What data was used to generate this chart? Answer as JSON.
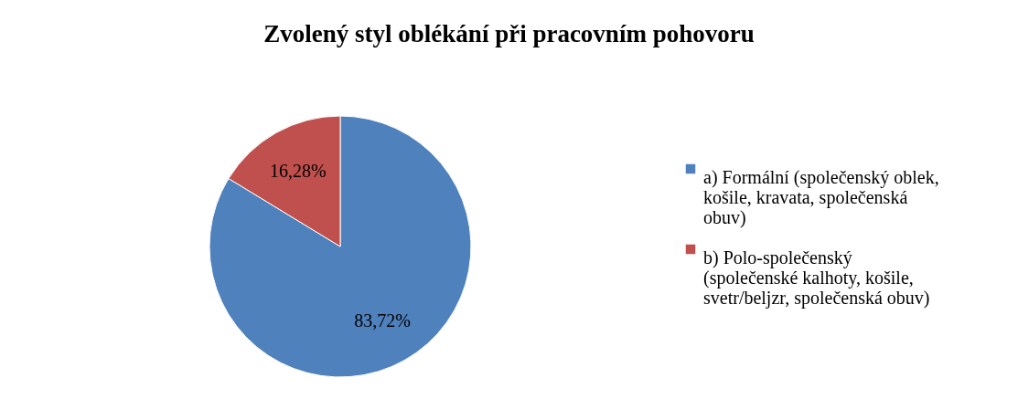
{
  "chart_data": {
    "type": "pie",
    "title": "Zvolený styl oblékání při pracovním pohovoru",
    "categories": [
      "a) Formální (společenský oblek, košile, kravata, společenská obuv)",
      "b) Polo-společenský (společenské kalhoty, košile, svetr/beljzr, společenská obuv)"
    ],
    "values": [
      83.72,
      16.28
    ],
    "colors": [
      "#4f81bd",
      "#c0504d"
    ],
    "value_labels": [
      "83,72%",
      "16,28%"
    ],
    "legend": "right"
  }
}
